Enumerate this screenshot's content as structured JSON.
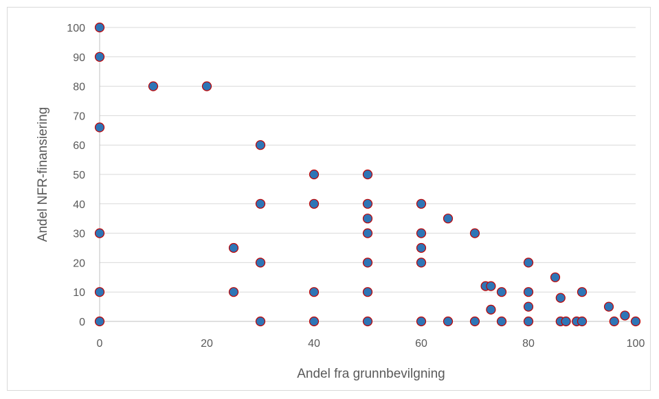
{
  "chart_data": {
    "type": "scatter",
    "title": "",
    "xlabel": "Andel fra grunnbevilgning",
    "ylabel": "Andel NFR-finansiering",
    "xlim": [
      0,
      100
    ],
    "ylim": [
      0,
      100
    ],
    "x_ticks": [
      0,
      20,
      40,
      60,
      80,
      100
    ],
    "y_ticks": [
      0,
      10,
      20,
      30,
      40,
      50,
      60,
      70,
      80,
      90,
      100
    ],
    "grid": "horizontal",
    "legend": "none",
    "marker_fill": "#2e75b6",
    "marker_stroke": "#c00000",
    "points": [
      {
        "x": 0,
        "y": 100
      },
      {
        "x": 0,
        "y": 90
      },
      {
        "x": 0,
        "y": 66
      },
      {
        "x": 0,
        "y": 30
      },
      {
        "x": 0,
        "y": 10
      },
      {
        "x": 0,
        "y": 0
      },
      {
        "x": 10,
        "y": 80
      },
      {
        "x": 20,
        "y": 80
      },
      {
        "x": 25,
        "y": 25
      },
      {
        "x": 25,
        "y": 10
      },
      {
        "x": 30,
        "y": 60
      },
      {
        "x": 30,
        "y": 40
      },
      {
        "x": 30,
        "y": 20
      },
      {
        "x": 30,
        "y": 0
      },
      {
        "x": 40,
        "y": 50
      },
      {
        "x": 40,
        "y": 40
      },
      {
        "x": 40,
        "y": 10
      },
      {
        "x": 40,
        "y": 0
      },
      {
        "x": 50,
        "y": 50
      },
      {
        "x": 50,
        "y": 40
      },
      {
        "x": 50,
        "y": 35
      },
      {
        "x": 50,
        "y": 30
      },
      {
        "x": 50,
        "y": 20
      },
      {
        "x": 50,
        "y": 10
      },
      {
        "x": 50,
        "y": 0
      },
      {
        "x": 60,
        "y": 40
      },
      {
        "x": 60,
        "y": 30
      },
      {
        "x": 60,
        "y": 25
      },
      {
        "x": 60,
        "y": 20
      },
      {
        "x": 60,
        "y": 0
      },
      {
        "x": 65,
        "y": 35
      },
      {
        "x": 65,
        "y": 0
      },
      {
        "x": 70,
        "y": 30
      },
      {
        "x": 70,
        "y": 0
      },
      {
        "x": 72,
        "y": 12
      },
      {
        "x": 73,
        "y": 12
      },
      {
        "x": 73,
        "y": 4
      },
      {
        "x": 75,
        "y": 10
      },
      {
        "x": 75,
        "y": 0
      },
      {
        "x": 80,
        "y": 20
      },
      {
        "x": 80,
        "y": 10
      },
      {
        "x": 80,
        "y": 5
      },
      {
        "x": 80,
        "y": 0
      },
      {
        "x": 85,
        "y": 15
      },
      {
        "x": 86,
        "y": 8
      },
      {
        "x": 86,
        "y": 0
      },
      {
        "x": 87,
        "y": 0
      },
      {
        "x": 89,
        "y": 0
      },
      {
        "x": 90,
        "y": 10
      },
      {
        "x": 90,
        "y": 0
      },
      {
        "x": 95,
        "y": 5
      },
      {
        "x": 96,
        "y": 0
      },
      {
        "x": 98,
        "y": 2
      },
      {
        "x": 100,
        "y": 0
      }
    ]
  }
}
